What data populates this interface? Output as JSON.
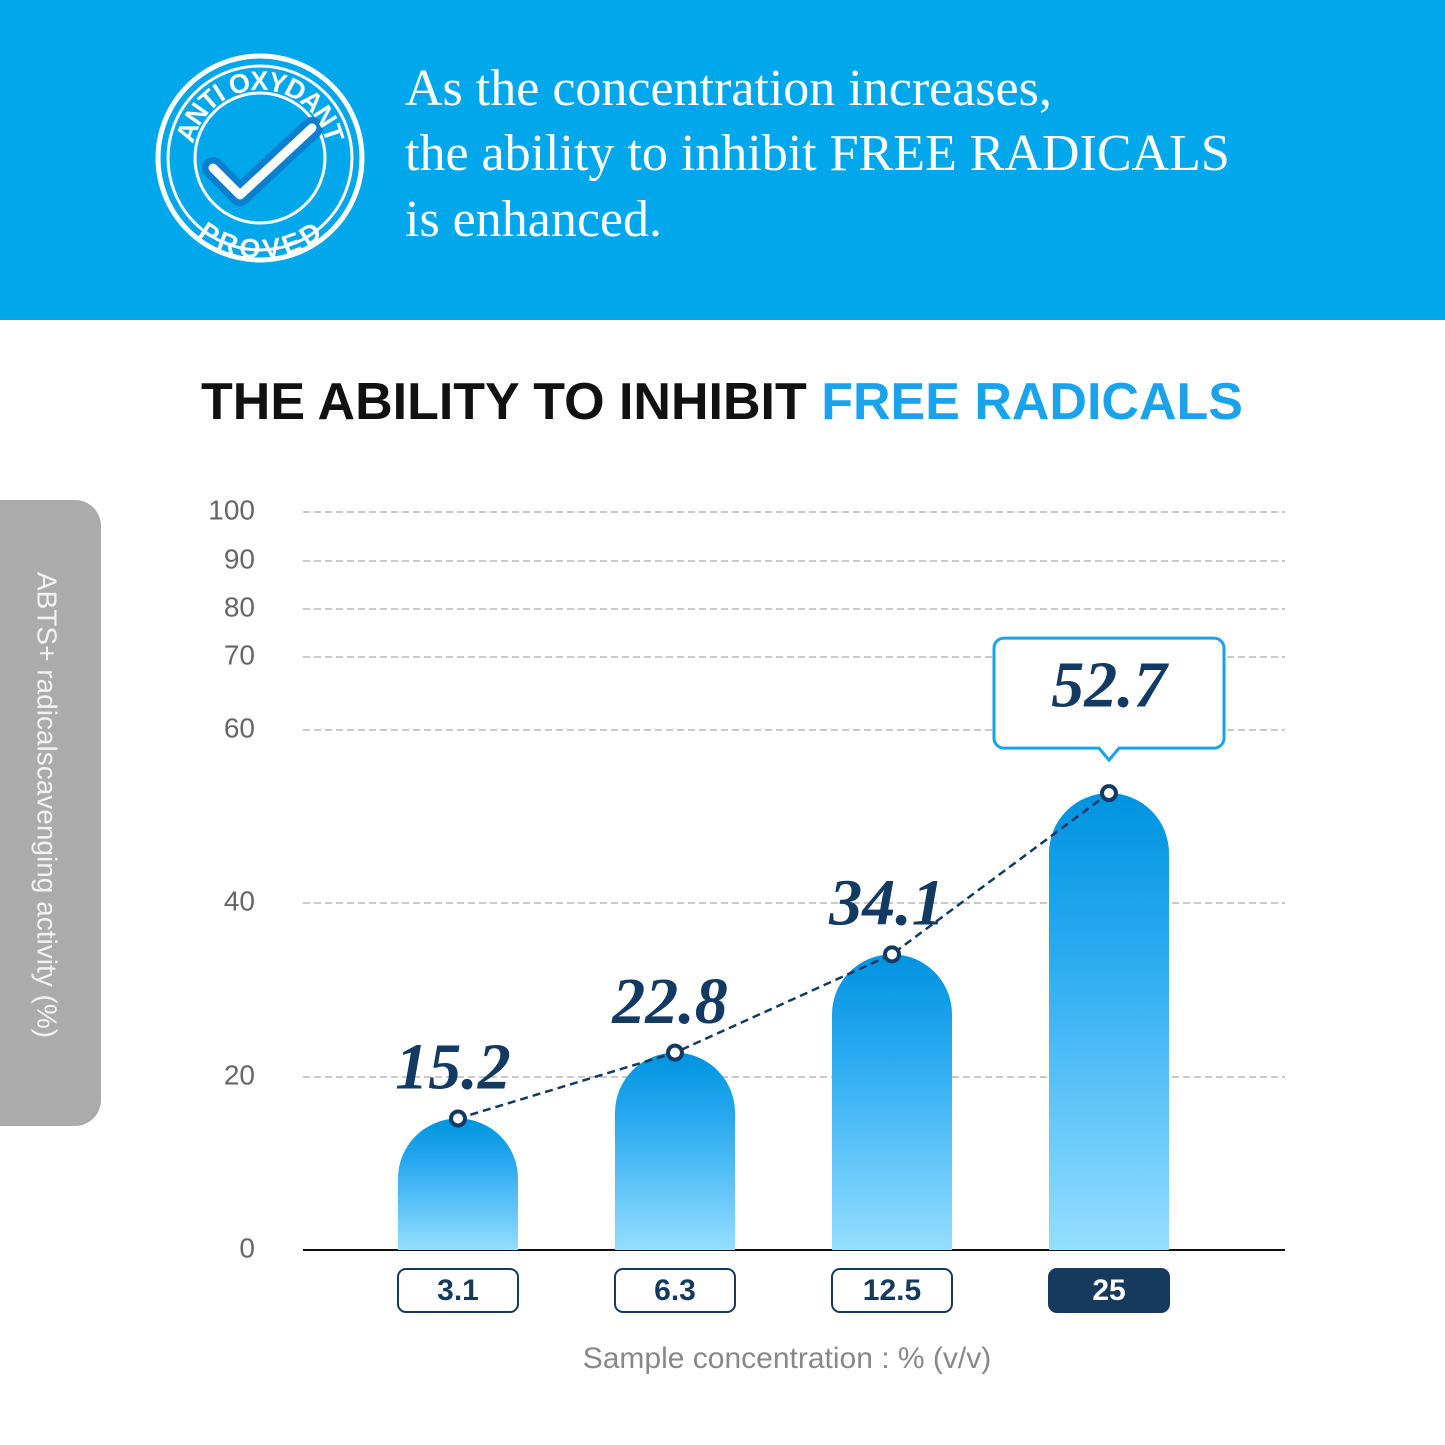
{
  "header": {
    "lines": [
      "As the concentration increases,",
      "the ability to inhibit FREE RADICALS",
      "is enhanced."
    ],
    "badge_top": "ANTI OXYDANT",
    "badge_bottom": "PROVED"
  },
  "chart_data": {
    "type": "bar",
    "title": "THE ABILITY TO INHIBIT",
    "title_highlight": "FREE RADICALS",
    "y_label": "ABTS+ radicalscavenging activity (%)",
    "x_label": "Sample concentration : % (v/v)",
    "categories": [
      "3.1",
      "6.3",
      "12.5",
      "25"
    ],
    "values": [
      15.2,
      22.8,
      34.1,
      52.7
    ],
    "color": "#0093e0",
    "ylim": [
      0,
      100
    ],
    "yticks": [
      0,
      20,
      40,
      60,
      70,
      80,
      90,
      100
    ],
    "grid": true
  }
}
